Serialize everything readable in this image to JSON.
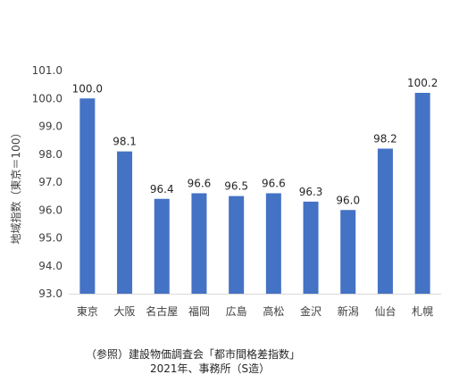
{
  "chart_data": {
    "type": "bar",
    "categories": [
      "東京",
      "大阪",
      "名古屋",
      "福岡",
      "広島",
      "高松",
      "金沢",
      "新潟",
      "仙台",
      "札幌"
    ],
    "values": [
      100.0,
      98.1,
      96.4,
      96.6,
      96.5,
      96.6,
      96.3,
      96.0,
      98.2,
      100.2
    ],
    "data_labels": [
      "100.0",
      "98.1",
      "96.4",
      "96.6",
      "96.5",
      "96.6",
      "96.3",
      "96.0",
      "98.2",
      "100.2"
    ],
    "title": "",
    "xlabel": "",
    "ylabel": "地域指数（東京＝100）",
    "ylim": [
      93.0,
      101.0
    ],
    "yticks": [
      "93.0",
      "94.0",
      "95.0",
      "96.0",
      "97.0",
      "98.0",
      "99.0",
      "100.0",
      "101.0"
    ],
    "bar_color": "#4472c4",
    "grid": false,
    "legend": "none"
  },
  "source": {
    "line1": "（参照）建設物価調査会「都市間格差指数」",
    "line2": "2021年、事務所（S造）"
  }
}
